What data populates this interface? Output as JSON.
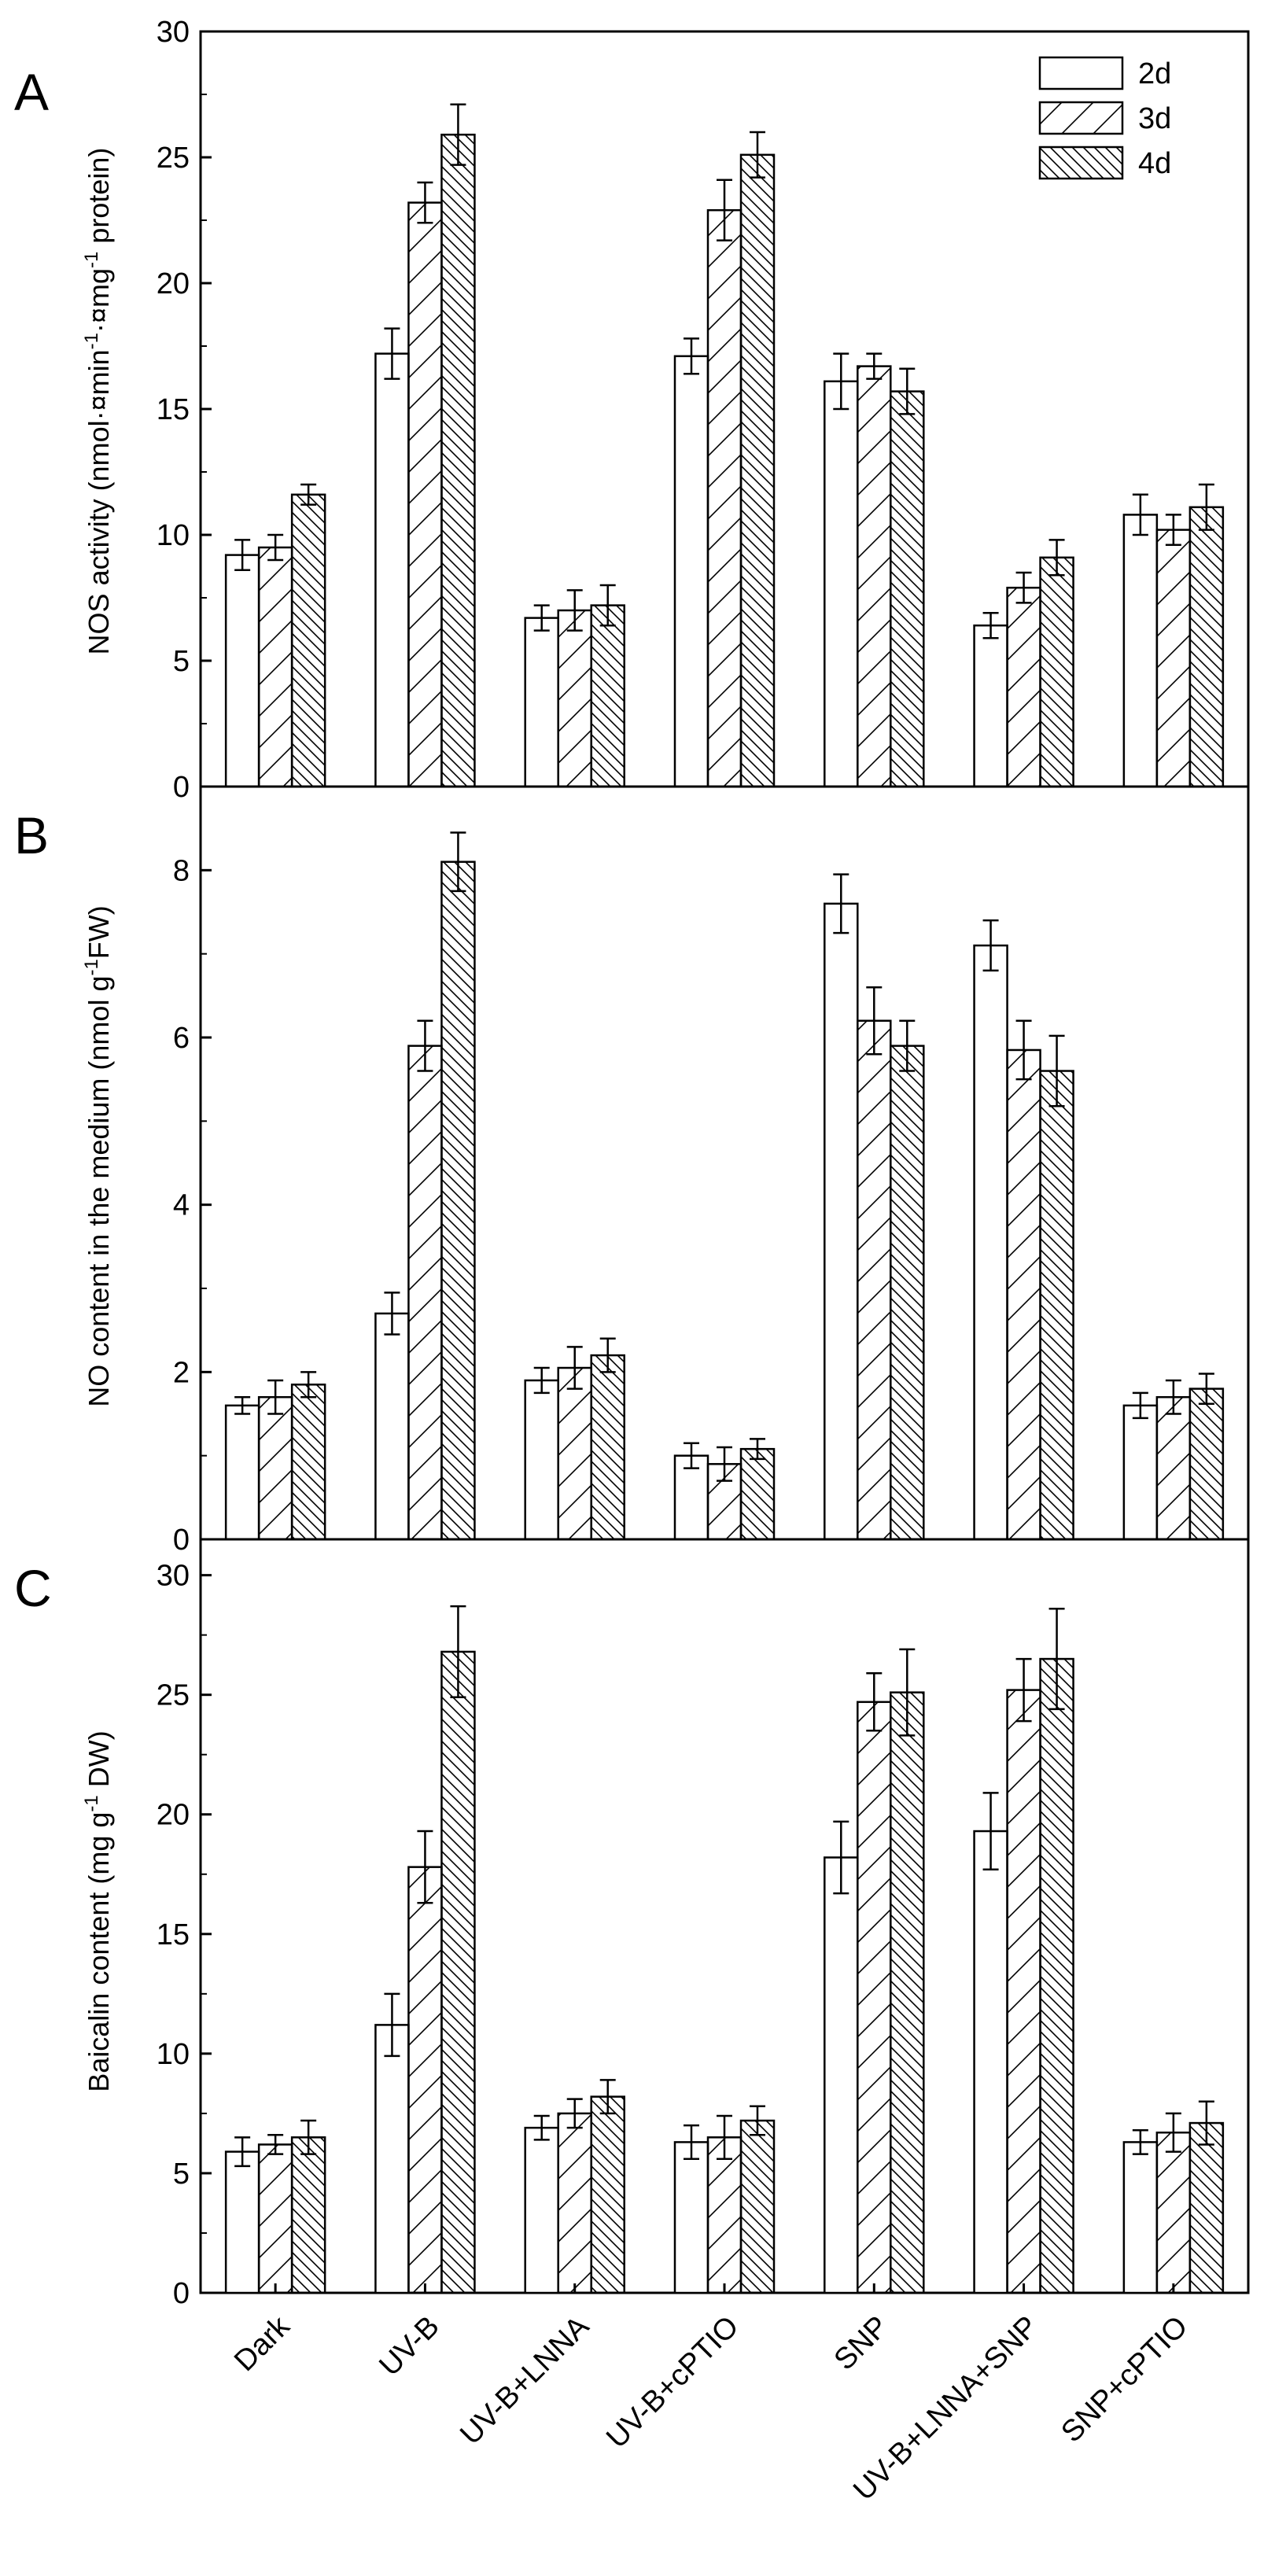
{
  "chart_data": [
    {
      "type": "bar",
      "panel_label": "A",
      "categories": [
        "Dark",
        "UV-B",
        "UV-B+LNNA",
        "UV-B+cPTIO",
        "SNP",
        "UV-B+LNNA+SNP",
        "SNP+cPTIO"
      ],
      "series": [
        {
          "name": "2d",
          "values": [
            9.2,
            17.2,
            6.7,
            17.1,
            16.1,
            6.4,
            10.8
          ],
          "errors": [
            0.6,
            1.0,
            0.5,
            0.7,
            1.1,
            0.5,
            0.8
          ]
        },
        {
          "name": "3d",
          "values": [
            9.5,
            23.2,
            7.0,
            22.9,
            16.7,
            7.9,
            10.2
          ],
          "errors": [
            0.5,
            0.8,
            0.8,
            1.2,
            0.5,
            0.6,
            0.6
          ]
        },
        {
          "name": "4d",
          "values": [
            11.6,
            25.9,
            7.2,
            25.1,
            15.7,
            9.1,
            11.1
          ],
          "errors": [
            0.4,
            1.2,
            0.8,
            0.9,
            0.9,
            0.7,
            0.9
          ]
        }
      ],
      "ylabel": "NOS activity (nmol·¤min-1·¤mg-1 protein)",
      "ylim": [
        0,
        30
      ],
      "yticks": [
        0,
        5,
        10,
        15,
        20,
        25,
        30
      ],
      "legend_position": "top-right"
    },
    {
      "type": "bar",
      "panel_label": "B",
      "categories": [
        "Dark",
        "UV-B",
        "UV-B+LNNA",
        "UV-B+cPTIO",
        "SNP",
        "UV-B+LNNA+SNP",
        "SNP+cPTIO"
      ],
      "series": [
        {
          "name": "2d",
          "values": [
            1.6,
            2.7,
            1.9,
            1.0,
            7.6,
            7.1,
            1.6
          ],
          "errors": [
            0.1,
            0.25,
            0.15,
            0.15,
            0.35,
            0.3,
            0.15
          ]
        },
        {
          "name": "3d",
          "values": [
            1.7,
            5.9,
            2.05,
            0.9,
            6.2,
            5.85,
            1.7
          ],
          "errors": [
            0.2,
            0.3,
            0.25,
            0.2,
            0.4,
            0.35,
            0.2
          ]
        },
        {
          "name": "4d",
          "values": [
            1.85,
            8.1,
            2.2,
            1.08,
            5.9,
            5.6,
            1.8
          ],
          "errors": [
            0.15,
            0.35,
            0.2,
            0.12,
            0.3,
            0.42,
            0.18
          ]
        }
      ],
      "ylabel": "NO content  in the medium (nmol g-1FW)",
      "ylim": [
        0,
        9
      ],
      "yticks": [
        0,
        2,
        4,
        6,
        8
      ]
    },
    {
      "type": "bar",
      "panel_label": "C",
      "categories": [
        "Dark",
        "UV-B",
        "UV-B+LNNA",
        "UV-B+cPTIO",
        "SNP",
        "UV-B+LNNA+SNP",
        "SNP+cPTIO"
      ],
      "series": [
        {
          "name": "2d",
          "values": [
            5.9,
            11.2,
            6.9,
            6.3,
            18.2,
            19.3,
            6.3
          ],
          "errors": [
            0.6,
            1.3,
            0.5,
            0.7,
            1.5,
            1.6,
            0.5
          ]
        },
        {
          "name": "3d",
          "values": [
            6.2,
            17.8,
            7.5,
            6.5,
            24.7,
            25.2,
            6.7
          ],
          "errors": [
            0.4,
            1.5,
            0.6,
            0.9,
            1.2,
            1.3,
            0.8
          ]
        },
        {
          "name": "4d",
          "values": [
            6.5,
            26.8,
            8.2,
            7.2,
            25.1,
            26.5,
            7.1
          ],
          "errors": [
            0.7,
            1.9,
            0.7,
            0.6,
            1.8,
            2.1,
            0.9
          ]
        }
      ],
      "ylabel": "Baicalin content (mg g-1 DW)",
      "ylim": [
        0,
        31.5
      ],
      "yticks": [
        0,
        5,
        10,
        15,
        20,
        25,
        30
      ]
    }
  ]
}
